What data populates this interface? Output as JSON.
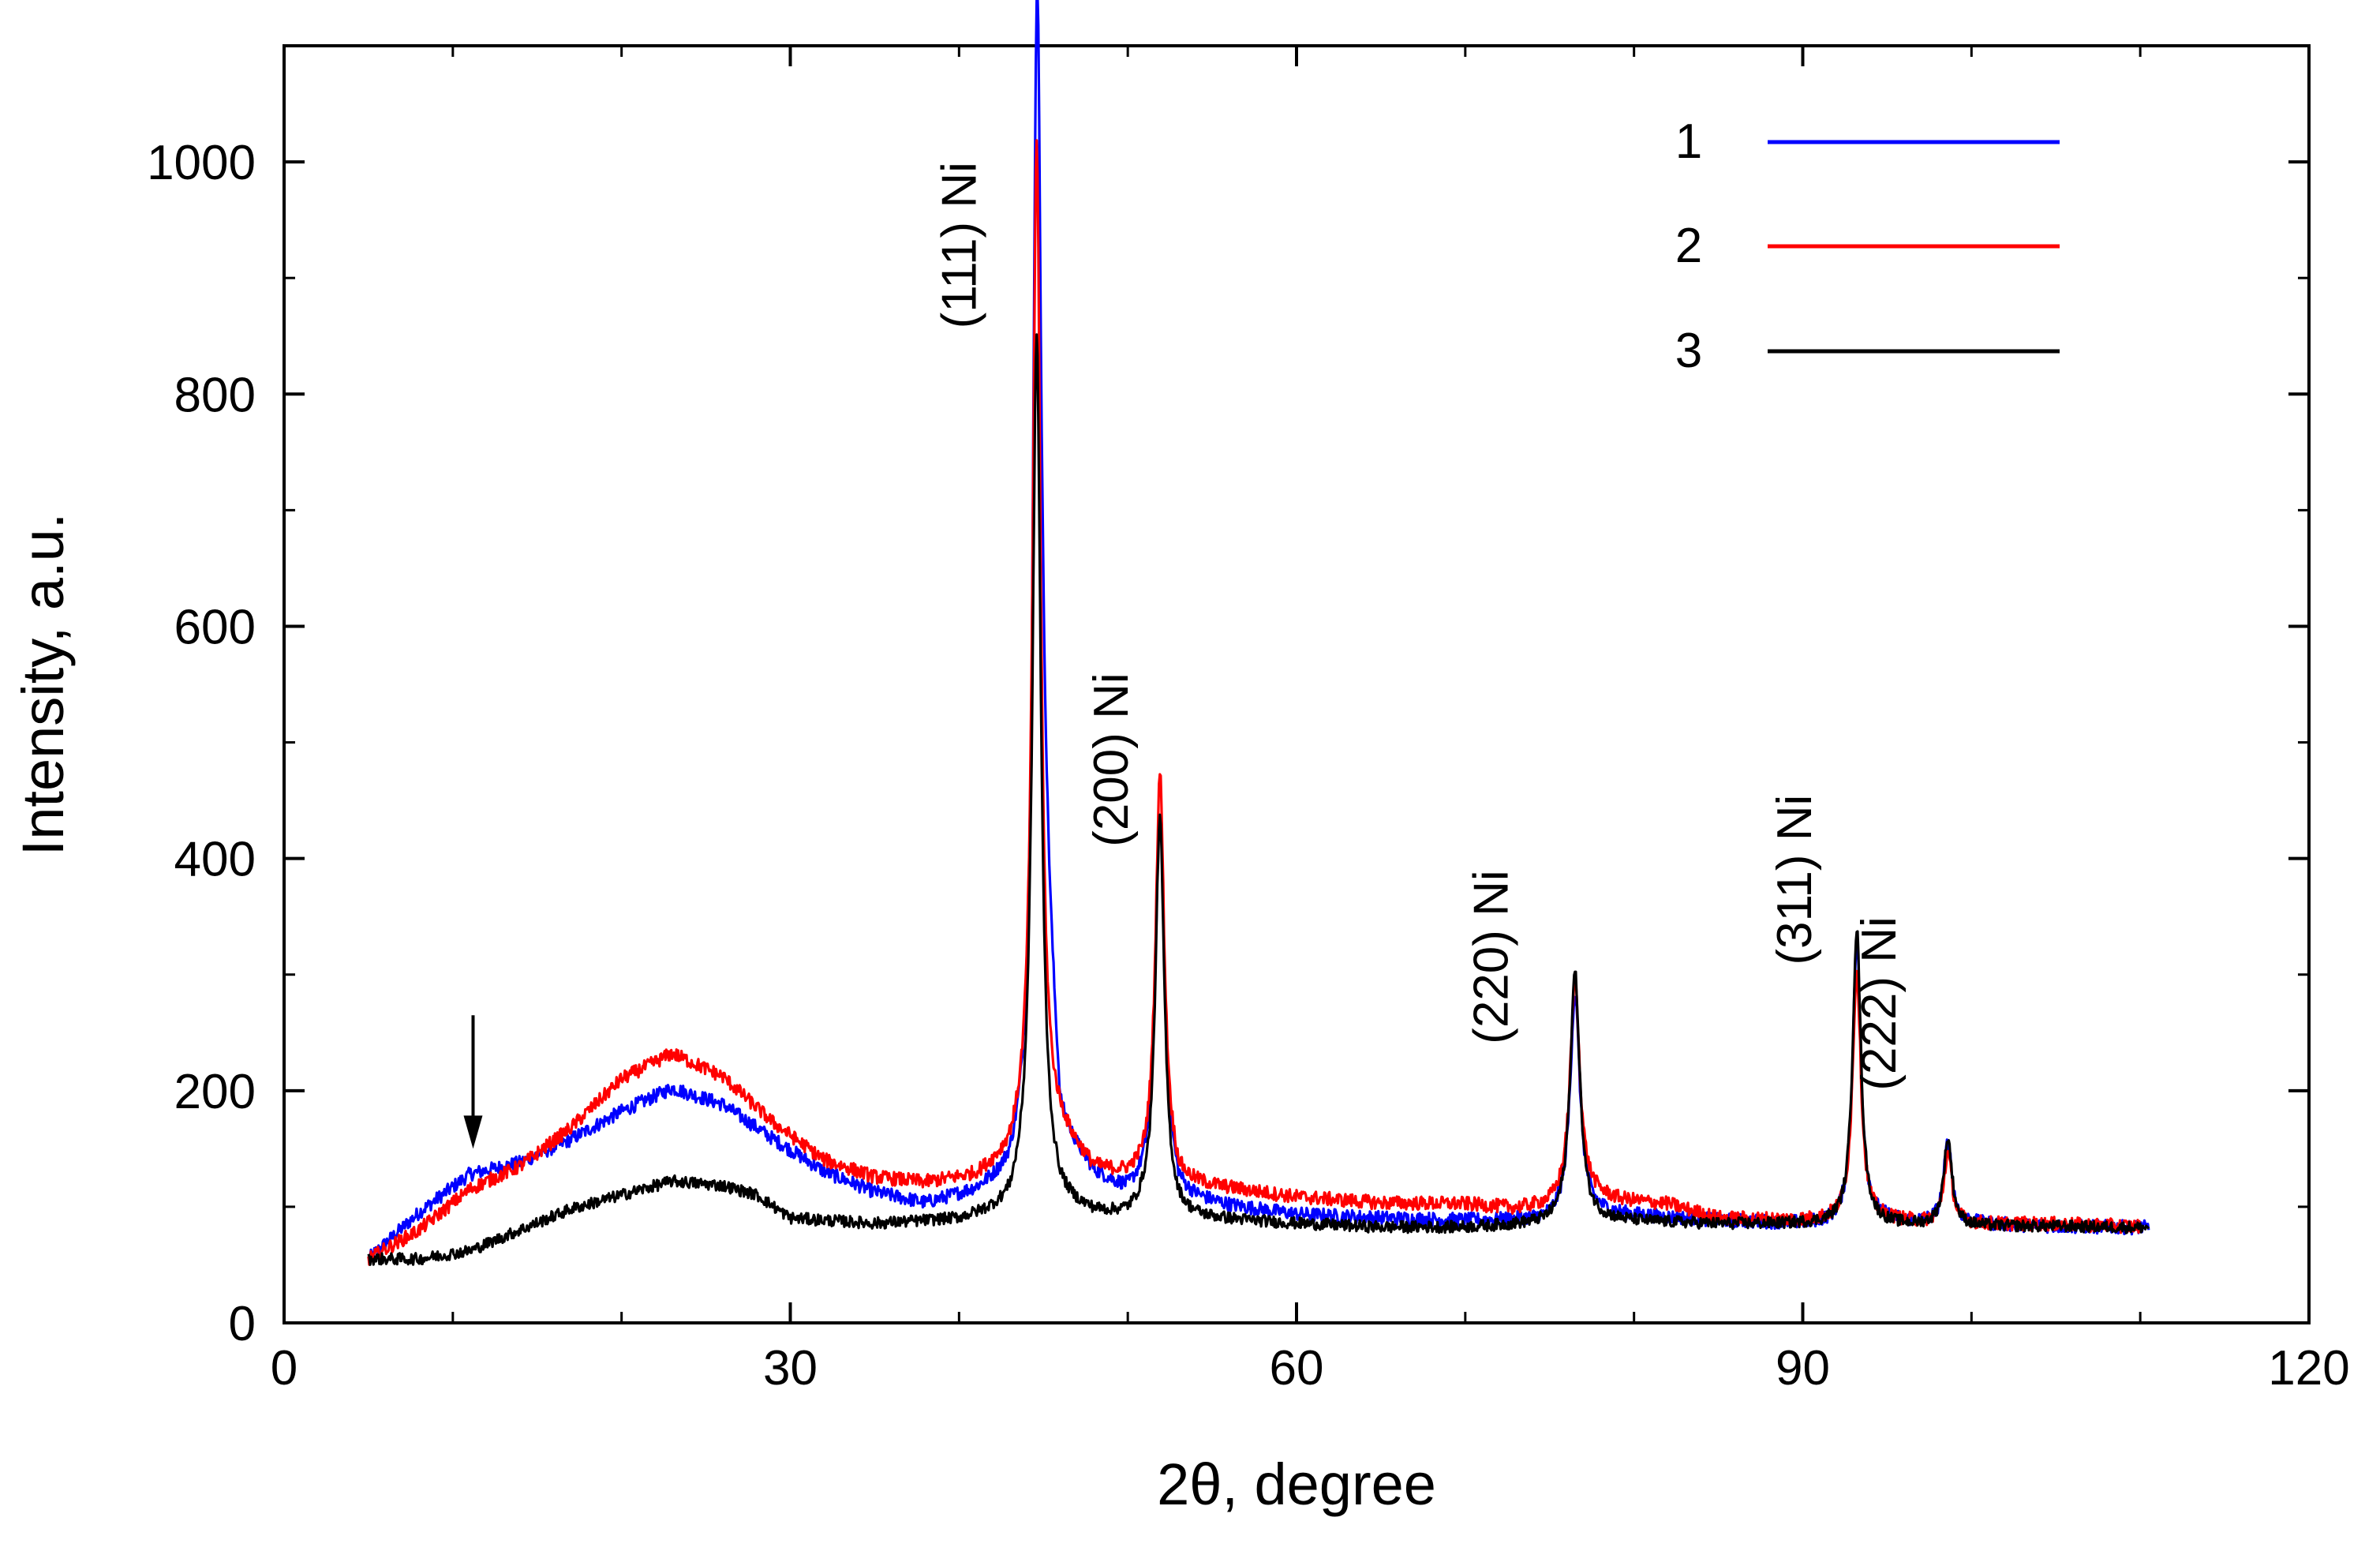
{
  "chart_data": {
    "type": "line",
    "title": "",
    "xlabel": "2θ, degree",
    "ylabel": "Intensity, a.u.",
    "xlim": [
      0,
      120
    ],
    "ylim": [
      0,
      1100
    ],
    "xticks": [
      0,
      30,
      60,
      90,
      120
    ],
    "xtick_labels": [
      "0",
      "30",
      "60",
      "90",
      "120"
    ],
    "yticks": [
      0,
      200,
      400,
      600,
      800,
      1000
    ],
    "ytick_labels": [
      "0",
      "200",
      "400",
      "600",
      "800",
      "1000"
    ],
    "grid": false,
    "legend_position": "top-right",
    "series": [
      {
        "name": "1",
        "color": "#0000ff",
        "base": [
          [
            5,
            55
          ],
          [
            8,
            95
          ],
          [
            11,
            128
          ],
          [
            14,
            138
          ],
          [
            17,
            158
          ],
          [
            20,
            182
          ],
          [
            23,
            202
          ],
          [
            26,
            188
          ],
          [
            29,
            158
          ],
          [
            32,
            130
          ],
          [
            35,
            112
          ],
          [
            38,
            102
          ],
          [
            41,
            112
          ],
          [
            43,
            125
          ],
          [
            44.3,
            165
          ],
          [
            44.7,
            420
          ],
          [
            46,
            160
          ],
          [
            48,
            125
          ],
          [
            50,
            110
          ],
          [
            51,
            118
          ],
          [
            52,
            140
          ],
          [
            53,
            108
          ],
          [
            56,
            100
          ],
          [
            60,
            93
          ],
          [
            65,
            90
          ],
          [
            70,
            88
          ],
          [
            75,
            88
          ],
          [
            77,
            95
          ],
          [
            79,
            93
          ],
          [
            85,
            88
          ],
          [
            90,
            85
          ],
          [
            92,
            85
          ],
          [
            94,
            88
          ],
          [
            98,
            85
          ],
          [
            100,
            85
          ],
          [
            105,
            83
          ],
          [
            110.5,
            82
          ]
        ],
        "peaks": [
          [
            44.6,
            780,
            0.3
          ],
          [
            51.9,
            300,
            0.32
          ],
          [
            76.5,
            190,
            0.35
          ],
          [
            93.2,
            240,
            0.3
          ],
          [
            98.6,
            70,
            0.3
          ]
        ],
        "noise": 6
      },
      {
        "name": "2",
        "color": "#ff0000",
        "base": [
          [
            5,
            55
          ],
          [
            8,
            80
          ],
          [
            11,
            115
          ],
          [
            14,
            135
          ],
          [
            17,
            168
          ],
          [
            20,
            210
          ],
          [
            23,
            232
          ],
          [
            26,
            212
          ],
          [
            29,
            172
          ],
          [
            32,
            140
          ],
          [
            35,
            125
          ],
          [
            38,
            120
          ],
          [
            41,
            125
          ],
          [
            43,
            140
          ],
          [
            44.3,
            170
          ],
          [
            46,
            160
          ],
          [
            48,
            130
          ],
          [
            50,
            125
          ],
          [
            51,
            130
          ],
          [
            52,
            155
          ],
          [
            53,
            120
          ],
          [
            56,
            115
          ],
          [
            60,
            108
          ],
          [
            65,
            103
          ],
          [
            70,
            102
          ],
          [
            73,
            98
          ],
          [
            75,
            100
          ],
          [
            77,
            110
          ],
          [
            79,
            105
          ],
          [
            82,
            102
          ],
          [
            85,
            90
          ],
          [
            90,
            88
          ],
          [
            92,
            88
          ],
          [
            95,
            88
          ],
          [
            98,
            85
          ],
          [
            100,
            85
          ],
          [
            105,
            85
          ],
          [
            110,
            83
          ]
        ],
        "peaks": [
          [
            44.6,
            850,
            0.28
          ],
          [
            51.9,
            320,
            0.3
          ],
          [
            76.5,
            185,
            0.35
          ],
          [
            93.2,
            215,
            0.3
          ],
          [
            98.6,
            60,
            0.3
          ]
        ],
        "noise": 6
      },
      {
        "name": "3",
        "color": "#000000",
        "base": [
          [
            5,
            55
          ],
          [
            8,
            55
          ],
          [
            11,
            62
          ],
          [
            14,
            80
          ],
          [
            17,
            98
          ],
          [
            20,
            110
          ],
          [
            23,
            122
          ],
          [
            26,
            118
          ],
          [
            28,
            110
          ],
          [
            30,
            90
          ],
          [
            35,
            85
          ],
          [
            40,
            88
          ],
          [
            43,
            96
          ],
          [
            44.2,
            120
          ],
          [
            46,
            100
          ],
          [
            48,
            92
          ],
          [
            50,
            90
          ],
          [
            51,
            95
          ],
          [
            53,
            90
          ],
          [
            56,
            88
          ],
          [
            60,
            85
          ],
          [
            65,
            82
          ],
          [
            70,
            82
          ],
          [
            75,
            85
          ],
          [
            78,
            88
          ],
          [
            85,
            85
          ],
          [
            90,
            85
          ],
          [
            95,
            84
          ],
          [
            100,
            83
          ],
          [
            105,
            83
          ],
          [
            110.5,
            82
          ]
        ],
        "peaks": [
          [
            44.6,
            735,
            0.3
          ],
          [
            51.9,
            340,
            0.32
          ],
          [
            76.5,
            215,
            0.35
          ],
          [
            93.2,
            255,
            0.3
          ],
          [
            98.6,
            75,
            0.3
          ]
        ],
        "noise": 5
      }
    ],
    "annotations": [
      {
        "text": "(111) Ni",
        "x": 41,
        "y": 1000
      },
      {
        "text": "(200) Ni",
        "x": 50,
        "y": 560
      },
      {
        "text": "(220) Ni",
        "x": 72.5,
        "y": 390
      },
      {
        "text": "(311) Ni",
        "x": 90.5,
        "y": 455
      },
      {
        "text": "(222) Ni",
        "x": 95.5,
        "y": 350
      }
    ],
    "arrow": {
      "x": 11.2,
      "y_top": 265,
      "y_bottom": 150
    }
  }
}
